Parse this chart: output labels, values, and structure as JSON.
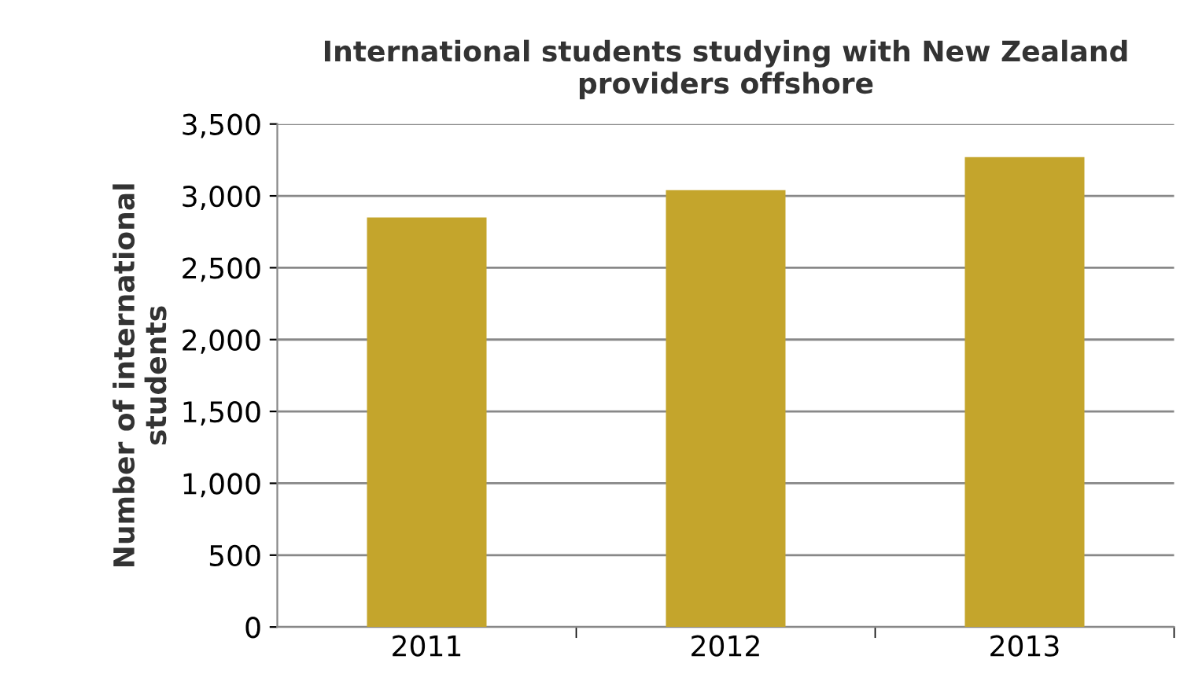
{
  "chart_data": {
    "type": "bar",
    "title": "International students studying with New Zealand\nproviders offshore",
    "ylabel": "Number of international\nstudents",
    "categories": [
      "2011",
      "2012",
      "2013"
    ],
    "values": [
      2850,
      3040,
      3270
    ],
    "color": "#c4a52c",
    "ylim": [
      0,
      3500
    ],
    "yticks": [
      {
        "value": 0,
        "label": "0"
      },
      {
        "value": 500,
        "label": "500"
      },
      {
        "value": 1000,
        "label": "1,000"
      },
      {
        "value": 1500,
        "label": "1,500"
      },
      {
        "value": 2000,
        "label": "2,000"
      },
      {
        "value": 2500,
        "label": "2,500"
      },
      {
        "value": 3000,
        "label": "3,000"
      },
      {
        "value": 3500,
        "label": "3,500"
      }
    ],
    "grid": "y"
  }
}
